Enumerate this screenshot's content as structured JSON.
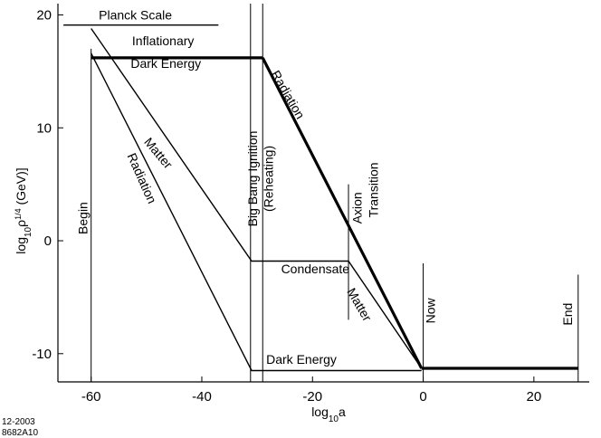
{
  "chart_data": {
    "type": "line",
    "title": "",
    "xlabel": "log10a",
    "ylabel": "log10ρ1/4 (GeV)",
    "xlim": [
      -66,
      30
    ],
    "ylim": [
      -12.5,
      21
    ],
    "xticks": [
      -60,
      -40,
      -20,
      0,
      20
    ],
    "yticks": [
      -10,
      0,
      10,
      20
    ],
    "grid": false,
    "series": [
      {
        "name": "Inflationary Dark Energy",
        "points": [
          [
            -60,
            16.2
          ],
          [
            -29,
            16.2
          ]
        ],
        "weight": "bold"
      },
      {
        "name": "Radiation",
        "points": [
          [
            -29,
            16.2
          ],
          [
            -0.3,
            -11.3
          ]
        ],
        "weight": "bold"
      },
      {
        "name": "Dark Energy (present)",
        "points": [
          [
            -0.3,
            -11.3
          ],
          [
            28,
            -11.3
          ]
        ],
        "weight": "bold"
      },
      {
        "name": "Matter",
        "points": [
          [
            -60,
            18.8
          ],
          [
            -31,
            -1.8
          ],
          [
            -13.5,
            -1.8
          ],
          [
            -0.3,
            -11.3
          ]
        ],
        "weight": "thin"
      },
      {
        "name": "Radiation (early)",
        "points": [
          [
            -60,
            16.6
          ],
          [
            -31,
            -11.5
          ],
          [
            -0.3,
            -11.5
          ]
        ],
        "weight": "thin"
      },
      {
        "name": "Planck Scale",
        "points": [
          [
            -65,
            19.1
          ],
          [
            -37,
            19.1
          ]
        ],
        "weight": "thin"
      }
    ],
    "vlines": [
      {
        "x": -60,
        "ymin": -12.5,
        "ymax": 17
      },
      {
        "x": -31.2,
        "ymin": -12.5,
        "ymax": 21
      },
      {
        "x": -29,
        "ymin": -12.5,
        "ymax": 21
      },
      {
        "x": -13.5,
        "ymin": -7,
        "ymax": 5
      },
      {
        "x": 0,
        "ymin": -12.5,
        "ymax": -2
      },
      {
        "x": 28,
        "ymin": -12.5,
        "ymax": -3
      }
    ],
    "annotations": [
      {
        "text": "Planck Scale",
        "x": -52,
        "y": 19.9,
        "rotate": 0
      },
      {
        "text": "Inflationary",
        "x": -47,
        "y": 17.6,
        "rotate": 0
      },
      {
        "text": "Dark Energy",
        "x": -46.5,
        "y": 15.6,
        "rotate": 0
      },
      {
        "text": "Matter",
        "x": -48,
        "y": 7.7,
        "rotate": 50
      },
      {
        "text": "Radiation",
        "x": -51,
        "y": 5.5,
        "rotate": 66
      },
      {
        "text": "Begin",
        "x": -61.3,
        "y": 2,
        "rotate": -90
      },
      {
        "text": "Big Bang Ignition",
        "x": -30.6,
        "y": 5.5,
        "rotate": -90
      },
      {
        "text": "(Reheating)",
        "x": -27.8,
        "y": 5.5,
        "rotate": -90
      },
      {
        "text": "Radiation",
        "x": -24.6,
        "y": 12.9,
        "rotate": 60
      },
      {
        "text": "Axion",
        "x": -11.7,
        "y": 2.9,
        "rotate": -90
      },
      {
        "text": "Transition",
        "x": -8.8,
        "y": 4.5,
        "rotate": -90
      },
      {
        "text": "Condensate",
        "x": -19.5,
        "y": -2.6,
        "rotate": 0
      },
      {
        "text": "Matter",
        "x": -11.7,
        "y": -5.7,
        "rotate": 60
      },
      {
        "text": "Now",
        "x": 1.5,
        "y": -6.2,
        "rotate": -90
      },
      {
        "text": "End",
        "x": 26.3,
        "y": -6.5,
        "rotate": -90
      },
      {
        "text": "Dark Energy",
        "x": -22,
        "y": -10.6,
        "rotate": 0
      }
    ]
  },
  "axes": {
    "xlabel_main": "log",
    "xlabel_sub": "10",
    "xlabel_var": "a",
    "ylabel_main": "log",
    "ylabel_sub": "10",
    "ylabel_rho": "ρ",
    "ylabel_sup": "1/4",
    "ylabel_unit": " (GeV)]"
  },
  "footer": {
    "date": "12-2003",
    "code": "8682A10"
  }
}
